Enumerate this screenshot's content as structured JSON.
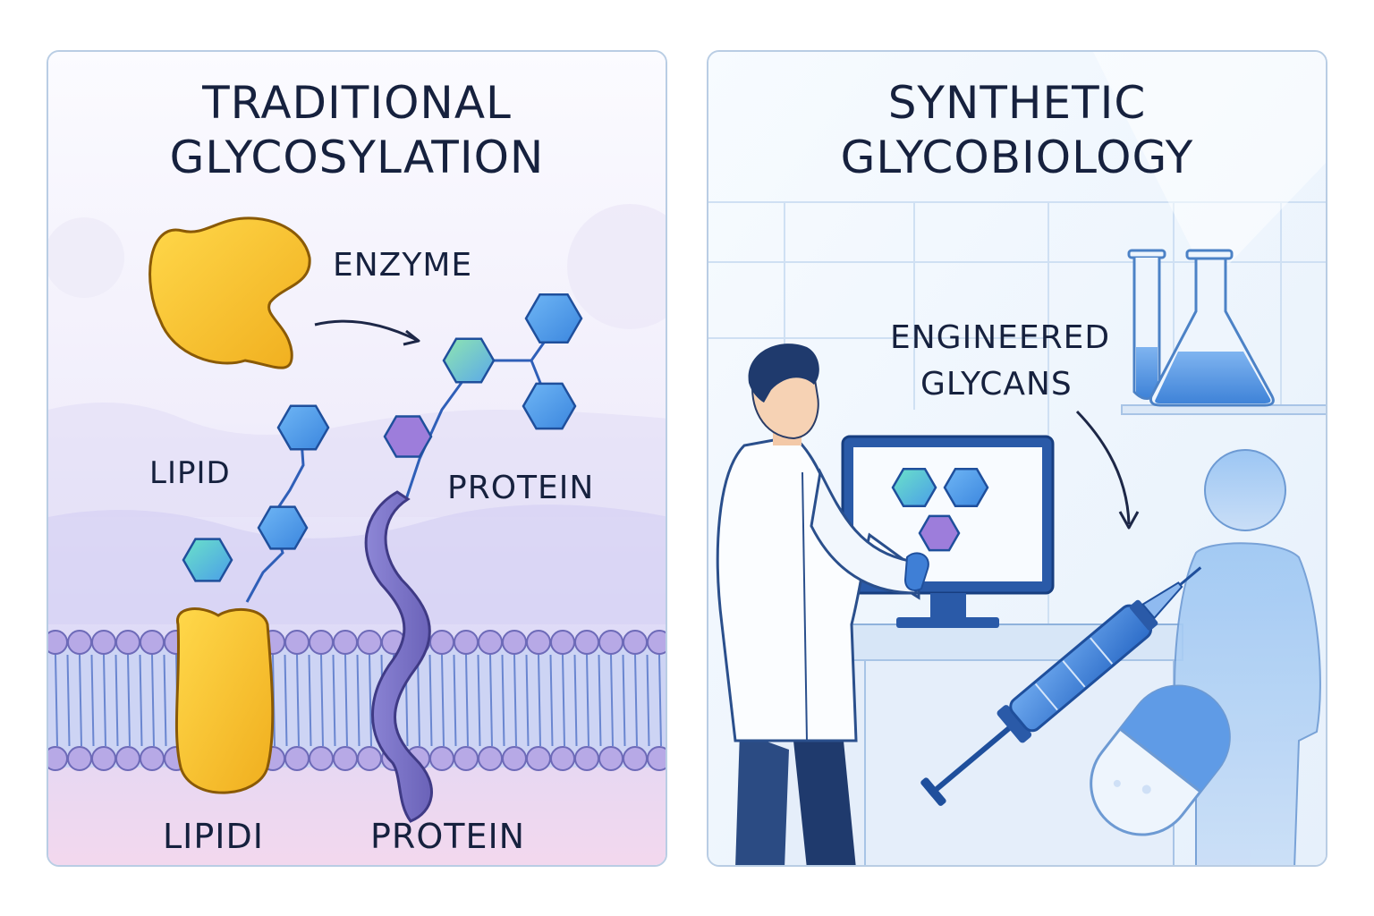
{
  "left_panel": {
    "title_line1": "TRADITIONAL",
    "title_line2": "GLYCOSYLATION",
    "labels": {
      "enzyme": "ENZYME",
      "lipid": "LIPID",
      "protein": "PROTEIN",
      "lipid_bottom": "LIPIDI",
      "protein_bottom": "PROTEIN"
    }
  },
  "right_panel": {
    "title_line1": "SYNTHETIC",
    "title_line2": "GLYCOBIOLOGY",
    "labels": {
      "engineered_line1": "ENGINEERED",
      "engineered_line2": "GLYCANS"
    }
  },
  "colors": {
    "title_text": "#16213e",
    "enzyme_yellow": "#f7c531",
    "protein_purple": "#7f78c8",
    "glycan_blue": "#4e9be8",
    "glycan_teal": "#4fd3c4",
    "glycan_violet": "#9d7ddb",
    "membrane_blue": "#b8c7f0"
  }
}
